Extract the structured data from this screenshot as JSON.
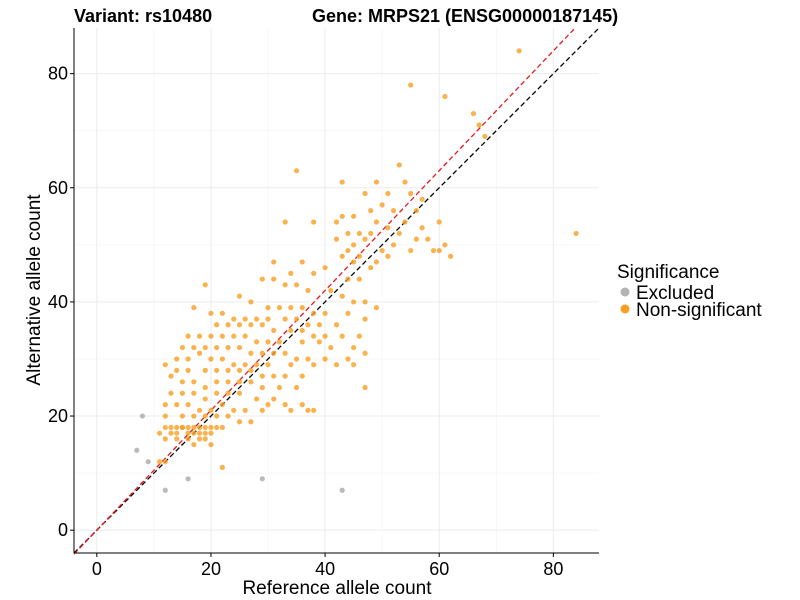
{
  "chart_data": {
    "type": "scatter",
    "title_left": "Variant: rs10480",
    "title_right": "Gene: MRPS21 (ENSG00000187145)",
    "xlabel": "Reference allele count",
    "ylabel": "Alternative allele count",
    "xlim": [
      -4,
      88
    ],
    "ylim": [
      -4,
      88
    ],
    "xticks": [
      0,
      20,
      40,
      60,
      80
    ],
    "yticks": [
      0,
      20,
      40,
      60,
      80
    ],
    "grid": true,
    "legend": {
      "title": "Significance",
      "position": "right",
      "entries": [
        {
          "label": "Excluded",
          "color": "#b3b3b3"
        },
        {
          "label": "Non-significant",
          "color": "#f79f20"
        }
      ]
    },
    "reference_lines": [
      {
        "name": "black",
        "color": "#000000",
        "intercept": 0,
        "slope": 1.0
      },
      {
        "name": "red",
        "color": "#e8191d",
        "intercept": 0,
        "slope": 1.05
      }
    ],
    "series": [
      {
        "name": "Excluded",
        "color": "#b3b3b3",
        "points": [
          [
            8,
            20
          ],
          [
            7,
            14
          ],
          [
            9,
            12
          ],
          [
            12,
            7
          ],
          [
            16,
            9
          ],
          [
            29,
            9
          ],
          [
            43,
            7
          ]
        ]
      },
      {
        "name": "Non-significant",
        "color": "#f79f20",
        "points": [
          [
            74,
            84
          ],
          [
            55,
            78
          ],
          [
            61,
            76
          ],
          [
            66,
            73
          ],
          [
            67,
            71
          ],
          [
            68,
            69
          ],
          [
            84,
            52
          ],
          [
            35,
            63
          ],
          [
            53,
            64
          ],
          [
            43,
            61
          ],
          [
            49,
            61
          ],
          [
            54,
            61
          ],
          [
            47,
            59
          ],
          [
            51,
            59
          ],
          [
            55,
            59
          ],
          [
            57,
            58
          ],
          [
            50,
            57
          ],
          [
            56,
            56
          ],
          [
            48,
            56
          ],
          [
            52,
            56
          ],
          [
            43,
            55
          ],
          [
            45,
            55
          ],
          [
            33,
            54
          ],
          [
            38,
            54
          ],
          [
            42,
            54
          ],
          [
            49,
            54
          ],
          [
            54,
            54
          ],
          [
            60,
            54
          ],
          [
            51,
            53
          ],
          [
            57,
            53
          ],
          [
            44,
            52
          ],
          [
            46,
            52
          ],
          [
            48,
            52
          ],
          [
            53,
            52
          ],
          [
            42,
            51
          ],
          [
            47,
            51
          ],
          [
            56,
            51
          ],
          [
            58,
            51
          ],
          [
            45,
            50
          ],
          [
            52,
            50
          ],
          [
            44,
            49
          ],
          [
            50,
            49
          ],
          [
            55,
            49
          ],
          [
            59,
            49
          ],
          [
            43,
            48
          ],
          [
            51,
            48
          ],
          [
            46,
            48
          ],
          [
            60,
            49
          ],
          [
            62,
            48
          ],
          [
            61,
            50
          ],
          [
            31,
            47
          ],
          [
            36,
            47
          ],
          [
            40,
            46
          ],
          [
            45,
            47
          ],
          [
            49,
            47
          ],
          [
            34,
            45
          ],
          [
            38,
            45
          ],
          [
            44,
            44
          ],
          [
            48,
            46
          ],
          [
            46,
            44
          ],
          [
            29,
            44
          ],
          [
            31,
            44
          ],
          [
            33,
            43
          ],
          [
            35,
            43
          ],
          [
            37,
            42
          ],
          [
            41,
            42
          ],
          [
            43,
            41
          ],
          [
            45,
            40
          ],
          [
            47,
            40
          ],
          [
            49,
            39
          ],
          [
            19,
            43
          ],
          [
            25,
            41
          ],
          [
            27,
            40
          ],
          [
            30,
            39
          ],
          [
            32,
            39
          ],
          [
            34,
            39
          ],
          [
            36,
            39
          ],
          [
            38,
            38
          ],
          [
            40,
            38
          ],
          [
            44,
            38
          ],
          [
            47,
            37
          ],
          [
            17,
            39
          ],
          [
            20,
            38
          ],
          [
            22,
            38
          ],
          [
            24,
            37
          ],
          [
            26,
            37
          ],
          [
            28,
            37
          ],
          [
            30,
            37
          ],
          [
            33,
            37
          ],
          [
            35,
            37
          ],
          [
            37,
            36
          ],
          [
            39,
            36
          ],
          [
            42,
            36
          ],
          [
            21,
            36
          ],
          [
            23,
            36
          ],
          [
            25,
            36
          ],
          [
            27,
            36
          ],
          [
            29,
            36
          ],
          [
            31,
            35
          ],
          [
            34,
            35
          ],
          [
            36,
            35
          ],
          [
            38,
            34
          ],
          [
            40,
            34
          ],
          [
            43,
            34
          ],
          [
            46,
            34
          ],
          [
            16,
            34
          ],
          [
            18,
            34
          ],
          [
            20,
            34
          ],
          [
            22,
            34
          ],
          [
            24,
            34
          ],
          [
            26,
            34
          ],
          [
            28,
            33
          ],
          [
            30,
            33
          ],
          [
            32,
            33
          ],
          [
            36,
            33
          ],
          [
            39,
            33
          ],
          [
            41,
            32
          ],
          [
            45,
            32
          ],
          [
            47,
            31
          ],
          [
            15,
            32
          ],
          [
            17,
            32
          ],
          [
            19,
            32
          ],
          [
            21,
            32
          ],
          [
            23,
            32
          ],
          [
            25,
            32
          ],
          [
            27,
            31
          ],
          [
            29,
            31
          ],
          [
            31,
            31
          ],
          [
            33,
            31
          ],
          [
            35,
            30
          ],
          [
            37,
            30
          ],
          [
            40,
            30
          ],
          [
            44,
            30
          ],
          [
            14,
            30
          ],
          [
            16,
            30
          ],
          [
            18,
            31
          ],
          [
            20,
            30
          ],
          [
            22,
            30
          ],
          [
            24,
            29
          ],
          [
            26,
            29
          ],
          [
            28,
            29
          ],
          [
            30,
            29
          ],
          [
            34,
            29
          ],
          [
            38,
            29
          ],
          [
            42,
            29
          ],
          [
            45,
            29
          ],
          [
            12,
            29
          ],
          [
            14,
            28
          ],
          [
            16,
            28
          ],
          [
            19,
            28
          ],
          [
            21,
            28
          ],
          [
            23,
            28
          ],
          [
            25,
            28
          ],
          [
            27,
            28
          ],
          [
            29,
            27
          ],
          [
            31,
            27
          ],
          [
            33,
            27
          ],
          [
            36,
            27
          ],
          [
            13,
            27
          ],
          [
            15,
            26
          ],
          [
            17,
            26
          ],
          [
            19,
            25
          ],
          [
            21,
            26
          ],
          [
            23,
            26
          ],
          [
            25,
            26
          ],
          [
            27,
            26
          ],
          [
            29,
            25
          ],
          [
            32,
            25
          ],
          [
            35,
            25
          ],
          [
            47,
            25
          ],
          [
            13,
            24
          ],
          [
            15,
            24
          ],
          [
            17,
            24
          ],
          [
            19,
            23
          ],
          [
            21,
            24
          ],
          [
            23,
            24
          ],
          [
            25,
            24
          ],
          [
            28,
            23
          ],
          [
            30,
            22
          ],
          [
            33,
            22
          ],
          [
            36,
            22
          ],
          [
            12,
            22
          ],
          [
            14,
            22
          ],
          [
            16,
            22
          ],
          [
            18,
            21
          ],
          [
            20,
            21
          ],
          [
            22,
            22
          ],
          [
            24,
            21
          ],
          [
            26,
            21
          ],
          [
            29,
            21
          ],
          [
            34,
            21
          ],
          [
            37,
            21
          ],
          [
            38,
            21
          ],
          [
            12,
            20
          ],
          [
            15,
            20
          ],
          [
            17,
            20
          ],
          [
            19,
            20
          ],
          [
            21,
            20
          ],
          [
            23,
            20
          ],
          [
            27,
            19
          ],
          [
            25,
            19
          ],
          [
            31,
            23
          ],
          [
            12,
            18
          ],
          [
            13,
            18
          ],
          [
            14,
            18
          ],
          [
            15,
            18
          ],
          [
            16,
            18
          ],
          [
            17,
            18
          ],
          [
            18,
            18
          ],
          [
            19,
            18
          ],
          [
            20,
            18
          ],
          [
            21,
            18
          ],
          [
            22,
            18
          ],
          [
            11,
            17
          ],
          [
            13,
            17
          ],
          [
            14,
            17
          ],
          [
            16,
            17
          ],
          [
            17,
            17
          ],
          [
            18,
            17
          ],
          [
            19,
            17
          ],
          [
            20,
            17
          ],
          [
            12,
            16
          ],
          [
            14,
            16
          ],
          [
            16,
            16
          ],
          [
            18,
            16
          ],
          [
            19,
            16
          ],
          [
            17,
            15
          ],
          [
            20,
            15
          ],
          [
            11,
            12
          ],
          [
            12,
            12
          ],
          [
            22,
            11
          ],
          [
            15,
            18
          ]
        ]
      }
    ]
  }
}
